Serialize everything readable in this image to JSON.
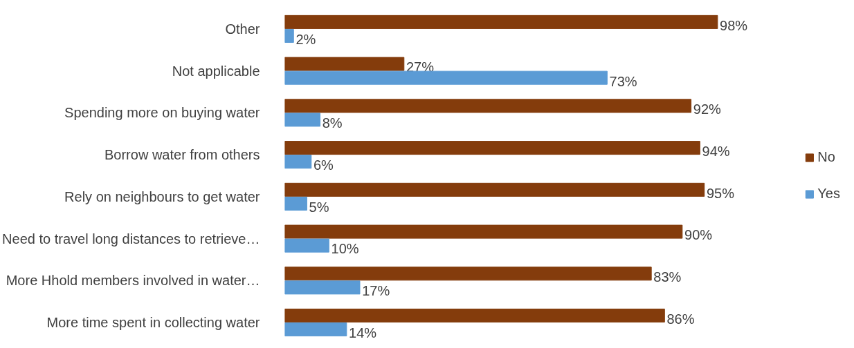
{
  "chart_data": {
    "type": "bar",
    "orientation": "horizontal",
    "categories": [
      "Other",
      "Not applicable",
      "Spending more on buying water",
      "Borrow water from others",
      "Rely on neighbours to get water",
      "Need to travel long distances to retrieve…",
      "More Hhold members involved in water…",
      "More time spent in collecting water"
    ],
    "series": [
      {
        "name": "No",
        "color": "#843c0c",
        "values": [
          98,
          27,
          92,
          94,
          95,
          90,
          83,
          86
        ],
        "value_labels": [
          "98%",
          "27%",
          "92%",
          "94%",
          "95%",
          "90%",
          "83%",
          "86%"
        ]
      },
      {
        "name": "Yes",
        "color": "#5b9bd5",
        "values": [
          2,
          73,
          8,
          6,
          5,
          10,
          17,
          14
        ],
        "value_labels": [
          "2%",
          "73%",
          "8%",
          "6%",
          "5%",
          "10%",
          "17%",
          "14%"
        ]
      }
    ],
    "tick_labels": "y",
    "grid": false,
    "legend": "right"
  }
}
